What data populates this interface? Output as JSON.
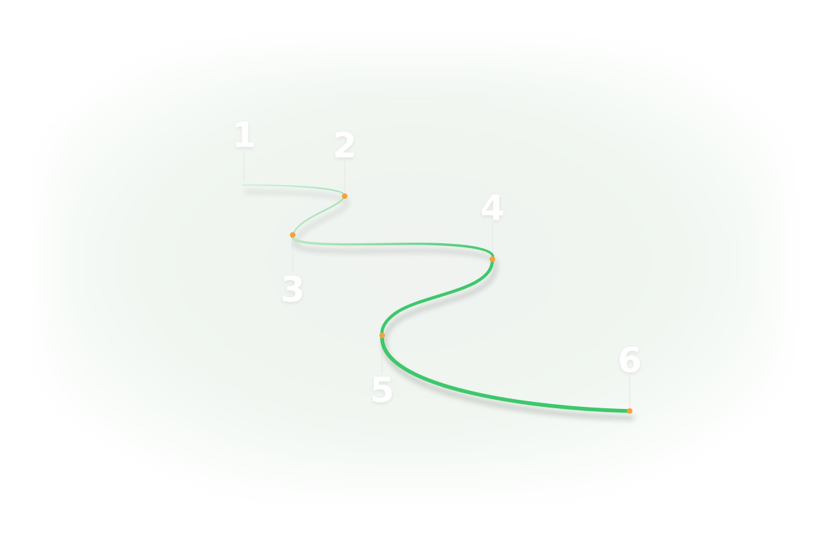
{
  "diagram": {
    "colors": {
      "path_start": "#a8e4b8",
      "path_end": "#3ec76c",
      "marker": "#f7a13a",
      "label": "#ffffff",
      "backdrop": "#eef4ef"
    },
    "steps": [
      {
        "label": "1"
      },
      {
        "label": "2"
      },
      {
        "label": "3"
      },
      {
        "label": "4"
      },
      {
        "label": "5"
      },
      {
        "label": "6"
      }
    ]
  }
}
